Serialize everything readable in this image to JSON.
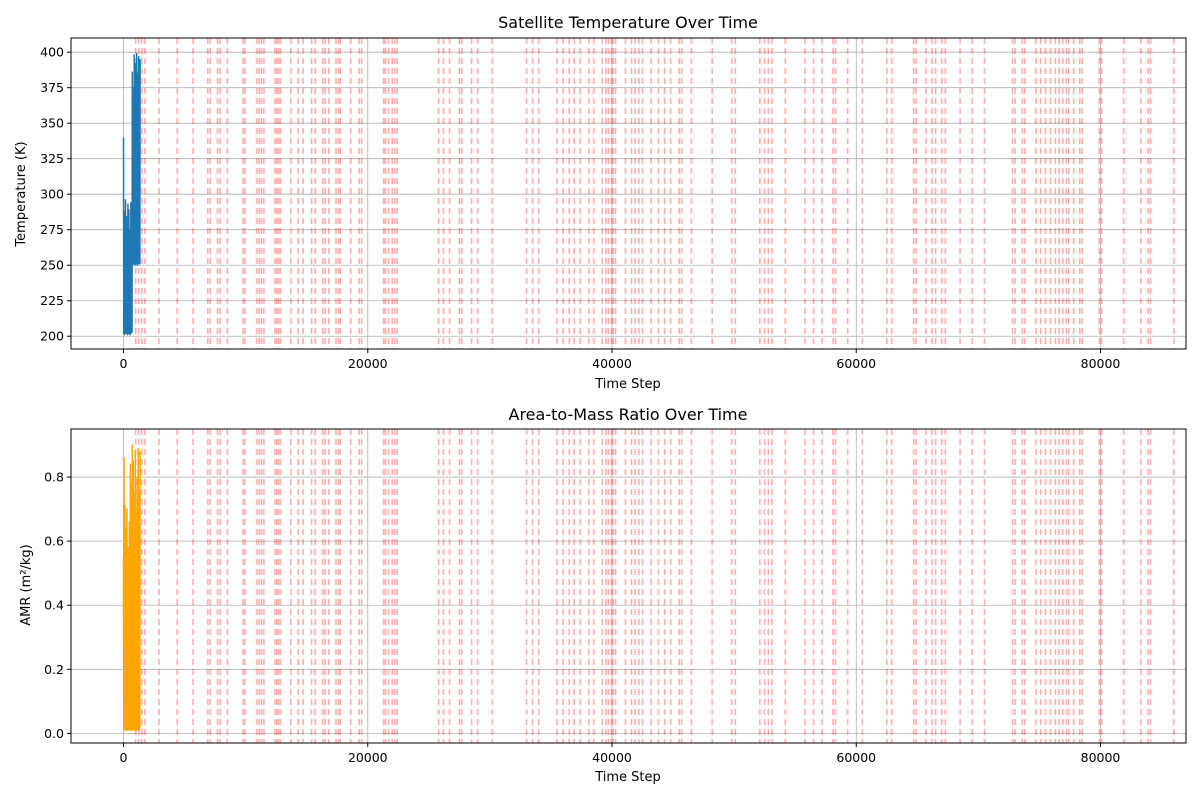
{
  "chart_data": [
    {
      "type": "line",
      "title": "Satellite Temperature Over Time",
      "xlabel": "Time Step",
      "ylabel": "Temperature (K)",
      "xlim": [
        -4300,
        87000
      ],
      "ylim": [
        191,
        410
      ],
      "xticks": [
        0,
        20000,
        40000,
        60000,
        80000
      ],
      "yticks": [
        200,
        225,
        250,
        275,
        300,
        325,
        350,
        375,
        400
      ],
      "grid": true,
      "color": "#1f77b4",
      "series": [
        {
          "x": [
            0,
            20,
            40,
            60,
            80,
            100,
            120,
            140,
            160,
            180,
            200,
            220,
            240,
            260,
            280,
            300,
            320,
            340,
            360,
            380,
            400,
            420,
            440,
            460,
            480,
            500,
            520,
            540,
            560,
            580,
            600,
            620,
            640,
            660,
            680,
            700,
            720,
            740,
            760,
            780,
            800,
            820,
            840,
            860,
            880,
            900,
            920,
            940,
            960,
            980,
            1000,
            1020,
            1040,
            1060,
            1080,
            1100,
            1120,
            1140,
            1160,
            1180,
            1200,
            1220,
            1240,
            1260,
            1280,
            1300,
            1320,
            1340,
            1360
          ],
          "values": [
            340,
            202,
            288,
            205,
            250,
            201,
            277,
            203,
            296,
            204,
            242,
            202,
            284,
            206,
            268,
            203,
            255,
            201,
            293,
            205,
            237,
            202,
            289,
            204,
            262,
            203,
            275,
            201,
            240,
            205,
            294,
            202,
            233,
            204,
            258,
            203,
            386,
            250,
            330,
            252,
            346,
            255,
            375,
            251,
            398,
            254,
            362,
            250,
            392,
            253,
            320,
            251,
            370,
            256,
            399,
            252,
            355,
            250,
            385,
            254,
            340,
            251,
            397,
            253,
            365,
            255,
            380,
            251,
            395
          ]
        }
      ],
      "events": [
        1000,
        1250,
        1500,
        1750,
        2900,
        4400,
        5700,
        6900,
        7100,
        7700,
        7900,
        8500,
        9800,
        9950,
        10900,
        11100,
        11300,
        11500,
        12400,
        12550,
        12700,
        12850,
        13700,
        14300,
        14700,
        15400,
        15700,
        16300,
        16500,
        16800,
        17400,
        17600,
        17750,
        18600,
        19300,
        19500,
        21300,
        21450,
        21700,
        22000,
        22200,
        22400,
        25800,
        26200,
        26700,
        27500,
        27700,
        28500,
        29000,
        30200,
        33000,
        33500,
        34000,
        35500,
        36000,
        36500,
        36900,
        37400,
        38100,
        38500,
        39200,
        39500,
        39700,
        39950,
        40100,
        40300,
        41100,
        41600,
        41900,
        42200,
        42500,
        43200,
        43800,
        44300,
        44800,
        45500,
        45700,
        46500,
        48200,
        49800,
        50100,
        52100,
        52500,
        52800,
        53100,
        54200,
        55800,
        56500,
        57200,
        58100,
        58300,
        59300,
        60500,
        62500,
        62900,
        64700,
        64900,
        65700,
        66200,
        66500,
        67000,
        67300,
        68500,
        69500,
        70500,
        72800,
        73000,
        73600,
        73800,
        74700,
        75100,
        75500,
        75900,
        76300,
        76600,
        76900,
        77200,
        77400,
        77800,
        78300,
        78500,
        79900,
        80100,
        81900,
        83300,
        83900,
        84100,
        86000
      ]
    },
    {
      "type": "line",
      "title": "Area-to-Mass Ratio Over Time",
      "xlabel": "Time Step",
      "ylabel": "AMR (m²/kg)",
      "xlim": [
        -4300,
        87000
      ],
      "ylim": [
        -0.03,
        0.95
      ],
      "xticks": [
        0,
        20000,
        40000,
        60000,
        80000
      ],
      "yticks": [
        0.0,
        0.2,
        0.4,
        0.6,
        0.8
      ],
      "yticklabels": [
        "0.0",
        "0.2",
        "0.4",
        "0.6",
        "0.8"
      ],
      "grid": true,
      "color": "#ffa500",
      "series": [
        {
          "x": [
            0,
            20,
            40,
            60,
            80,
            100,
            120,
            140,
            160,
            180,
            200,
            220,
            240,
            260,
            280,
            300,
            320,
            340,
            360,
            380,
            400,
            420,
            440,
            460,
            480,
            500,
            520,
            540,
            560,
            580,
            600,
            620,
            640,
            660,
            680,
            700,
            720,
            740,
            760,
            780,
            800,
            820,
            840,
            860,
            880,
            900,
            920,
            940,
            960,
            980,
            1000,
            1020,
            1040,
            1060,
            1080,
            1100,
            1120,
            1140,
            1160,
            1180,
            1200,
            1220,
            1240,
            1260,
            1280,
            1300,
            1320,
            1340,
            1360
          ],
          "values": [
            0.55,
            0.02,
            0.86,
            0.03,
            0.4,
            0.01,
            0.71,
            0.02,
            0.3,
            0.03,
            0.64,
            0.01,
            0.48,
            0.02,
            0.7,
            0.03,
            0.22,
            0.01,
            0.58,
            0.02,
            0.35,
            0.03,
            0.52,
            0.01,
            0.66,
            0.02,
            0.28,
            0.03,
            0.84,
            0.01,
            0.45,
            0.02,
            0.78,
            0.03,
            0.33,
            0.01,
            0.9,
            0.02,
            0.6,
            0.03,
            0.85,
            0.01,
            0.42,
            0.02,
            0.75,
            0.03,
            0.55,
            0.01,
            0.88,
            0.02,
            0.38,
            0.03,
            0.7,
            0.01,
            0.62,
            0.02,
            0.8,
            0.03,
            0.5,
            0.01,
            0.89,
            0.02,
            0.45,
            0.03,
            0.75,
            0.01,
            0.6,
            0.02,
            0.88
          ]
        }
      ],
      "events": [
        1000,
        1250,
        1500,
        1750,
        2900,
        4400,
        5700,
        6900,
        7100,
        7700,
        7900,
        8500,
        9800,
        9950,
        10900,
        11100,
        11300,
        11500,
        12400,
        12550,
        12700,
        12850,
        13700,
        14300,
        14700,
        15400,
        15700,
        16300,
        16500,
        16800,
        17400,
        17600,
        17750,
        18600,
        19300,
        19500,
        21300,
        21450,
        21700,
        22000,
        22200,
        22400,
        25800,
        26200,
        26700,
        27500,
        27700,
        28500,
        29000,
        30200,
        33000,
        33500,
        34000,
        35500,
        36000,
        36500,
        36900,
        37400,
        38100,
        38500,
        39200,
        39500,
        39700,
        39950,
        40100,
        40300,
        41100,
        41600,
        41900,
        42200,
        42500,
        43200,
        43800,
        44300,
        44800,
        45500,
        45700,
        46500,
        48200,
        49800,
        50100,
        52100,
        52500,
        52800,
        53100,
        54200,
        55800,
        56500,
        57200,
        58100,
        58300,
        59300,
        60500,
        62500,
        62900,
        64700,
        64900,
        65700,
        66200,
        66500,
        67000,
        67300,
        68500,
        69500,
        70500,
        72800,
        73000,
        73600,
        73800,
        74700,
        75100,
        75500,
        75900,
        76300,
        76600,
        76900,
        77200,
        77400,
        77800,
        78300,
        78500,
        79900,
        80100,
        81900,
        83300,
        83900,
        84100,
        86000
      ]
    }
  ]
}
